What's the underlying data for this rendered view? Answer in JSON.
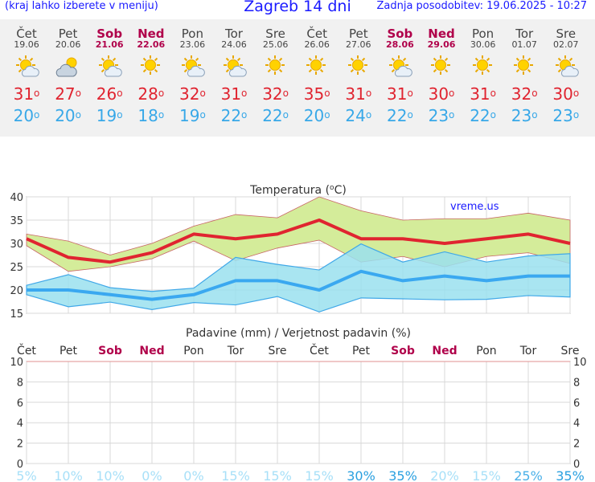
{
  "header": {
    "left_note": "(kraj lahko izberete v meniju)",
    "title": "Zagreb 14 dni",
    "updated": "Zadnja posodobitev: 19.06.2025 - 10:27"
  },
  "days": [
    {
      "name": "Čet",
      "date": "19.06",
      "weekend": false,
      "icon": "sun-cloud-icon",
      "tmax": "31",
      "tmin": "20"
    },
    {
      "name": "Pet",
      "date": "20.06",
      "weekend": false,
      "icon": "cloudy-sun-icon",
      "tmax": "27",
      "tmin": "20"
    },
    {
      "name": "Sob",
      "date": "21.06",
      "weekend": true,
      "icon": "sun-cloud-icon",
      "tmax": "26",
      "tmin": "19"
    },
    {
      "name": "Ned",
      "date": "22.06",
      "weekend": true,
      "icon": "sun-icon",
      "tmax": "28",
      "tmin": "18"
    },
    {
      "name": "Pon",
      "date": "23.06",
      "weekend": false,
      "icon": "sun-cloud-icon",
      "tmax": "32",
      "tmin": "19"
    },
    {
      "name": "Tor",
      "date": "24.06",
      "weekend": false,
      "icon": "sun-cloud-icon",
      "tmax": "31",
      "tmin": "22"
    },
    {
      "name": "Sre",
      "date": "25.06",
      "weekend": false,
      "icon": "sun-icon",
      "tmax": "32",
      "tmin": "22"
    },
    {
      "name": "Čet",
      "date": "26.06",
      "weekend": false,
      "icon": "sun-icon",
      "tmax": "35",
      "tmin": "20"
    },
    {
      "name": "Pet",
      "date": "27.06",
      "weekend": false,
      "icon": "sun-icon",
      "tmax": "31",
      "tmin": "24"
    },
    {
      "name": "Sob",
      "date": "28.06",
      "weekend": true,
      "icon": "sun-cloud-icon",
      "tmax": "31",
      "tmin": "22"
    },
    {
      "name": "Ned",
      "date": "29.06",
      "weekend": true,
      "icon": "sun-icon",
      "tmax": "30",
      "tmin": "23"
    },
    {
      "name": "Pon",
      "date": "30.06",
      "weekend": false,
      "icon": "sun-icon",
      "tmax": "31",
      "tmin": "22"
    },
    {
      "name": "Tor",
      "date": "01.07",
      "weekend": false,
      "icon": "sun-icon",
      "tmax": "32",
      "tmin": "23"
    },
    {
      "name": "Sre",
      "date": "02.07",
      "weekend": false,
      "icon": "sun-cloud-icon",
      "tmax": "30",
      "tmin": "23"
    }
  ],
  "colors": {
    "tmax": "#e02430",
    "tmin": "#38a8e8",
    "weekend": "#b0004a",
    "max_band": "#d4ec9a",
    "min_band": "#9ae0ee",
    "overlap_band": "#7cc8a0",
    "precip_low": "#a8e0f8",
    "precip_high": "#2aa0e0"
  },
  "chart_data": [
    {
      "type": "line",
      "title": "Temperatura (°C)",
      "title_main": "Temperatura (",
      "title_unit": "o",
      "title_unit_end": "C)",
      "watermark": "vreme.us",
      "categories": [
        "Čet",
        "Pet",
        "Sob",
        "Ned",
        "Pon",
        "Tor",
        "Sre",
        "Čet",
        "Pet",
        "Sob",
        "Ned",
        "Pon",
        "Tor",
        "Sre"
      ],
      "ylim": [
        15,
        40
      ],
      "yticks": [
        "40",
        "35",
        "30",
        "25",
        "20",
        "15"
      ],
      "grid": true,
      "series": [
        {
          "values": [
            31,
            27,
            26,
            28,
            32,
            31,
            32,
            35,
            31,
            31,
            30,
            31,
            32,
            30
          ]
        },
        {
          "values": [
            32,
            30.5,
            27.5,
            30,
            33.7,
            36.2,
            35.5,
            40,
            37,
            35,
            35.3,
            35.3,
            36.5,
            35
          ]
        },
        {
          "values": [
            29.5,
            24,
            25,
            26.7,
            30.5,
            26.3,
            29,
            30.7,
            26,
            27.2,
            25,
            27.2,
            28,
            25.7
          ]
        },
        {
          "values": [
            20,
            20,
            19,
            18,
            19,
            22,
            22,
            20,
            24,
            22,
            23,
            22,
            23,
            23
          ]
        },
        {
          "values": [
            21,
            23.3,
            20.5,
            19.7,
            20.4,
            27,
            25.5,
            24.3,
            29.9,
            26,
            28.2,
            26,
            27.3,
            27.8
          ]
        },
        {
          "values": [
            19,
            16.4,
            17.4,
            15.8,
            17.3,
            16.8,
            18.6,
            15.3,
            18.3,
            18.1,
            17.9,
            18,
            18.8,
            18.5
          ]
        }
      ]
    },
    {
      "type": "bar",
      "title": "Padavine (mm) / Verjetnost padavin (%)",
      "categories": [
        "Čet",
        "Pet",
        "Sob",
        "Ned",
        "Pon",
        "Tor",
        "Sre",
        "Čet",
        "Pet",
        "Sob",
        "Ned",
        "Pon",
        "Tor",
        "Sre"
      ],
      "weekend": [
        false,
        false,
        true,
        true,
        false,
        false,
        false,
        false,
        false,
        true,
        true,
        false,
        false,
        false
      ],
      "ylim": [
        0,
        10
      ],
      "yticks": [
        "10",
        "8",
        "6",
        "4",
        "2",
        "0"
      ],
      "precip_mm": [
        0,
        0,
        0,
        0,
        0,
        0,
        0,
        0,
        0,
        0,
        0,
        0,
        0,
        0
      ],
      "probability": [
        "5%",
        "10%",
        "10%",
        "0%",
        "0%",
        "15%",
        "15%",
        "15%",
        "30%",
        "35%",
        "20%",
        "15%",
        "25%",
        "35%"
      ],
      "probability_values": [
        5,
        10,
        10,
        0,
        0,
        15,
        15,
        15,
        30,
        35,
        20,
        15,
        25,
        35
      ],
      "grid": true
    }
  ]
}
